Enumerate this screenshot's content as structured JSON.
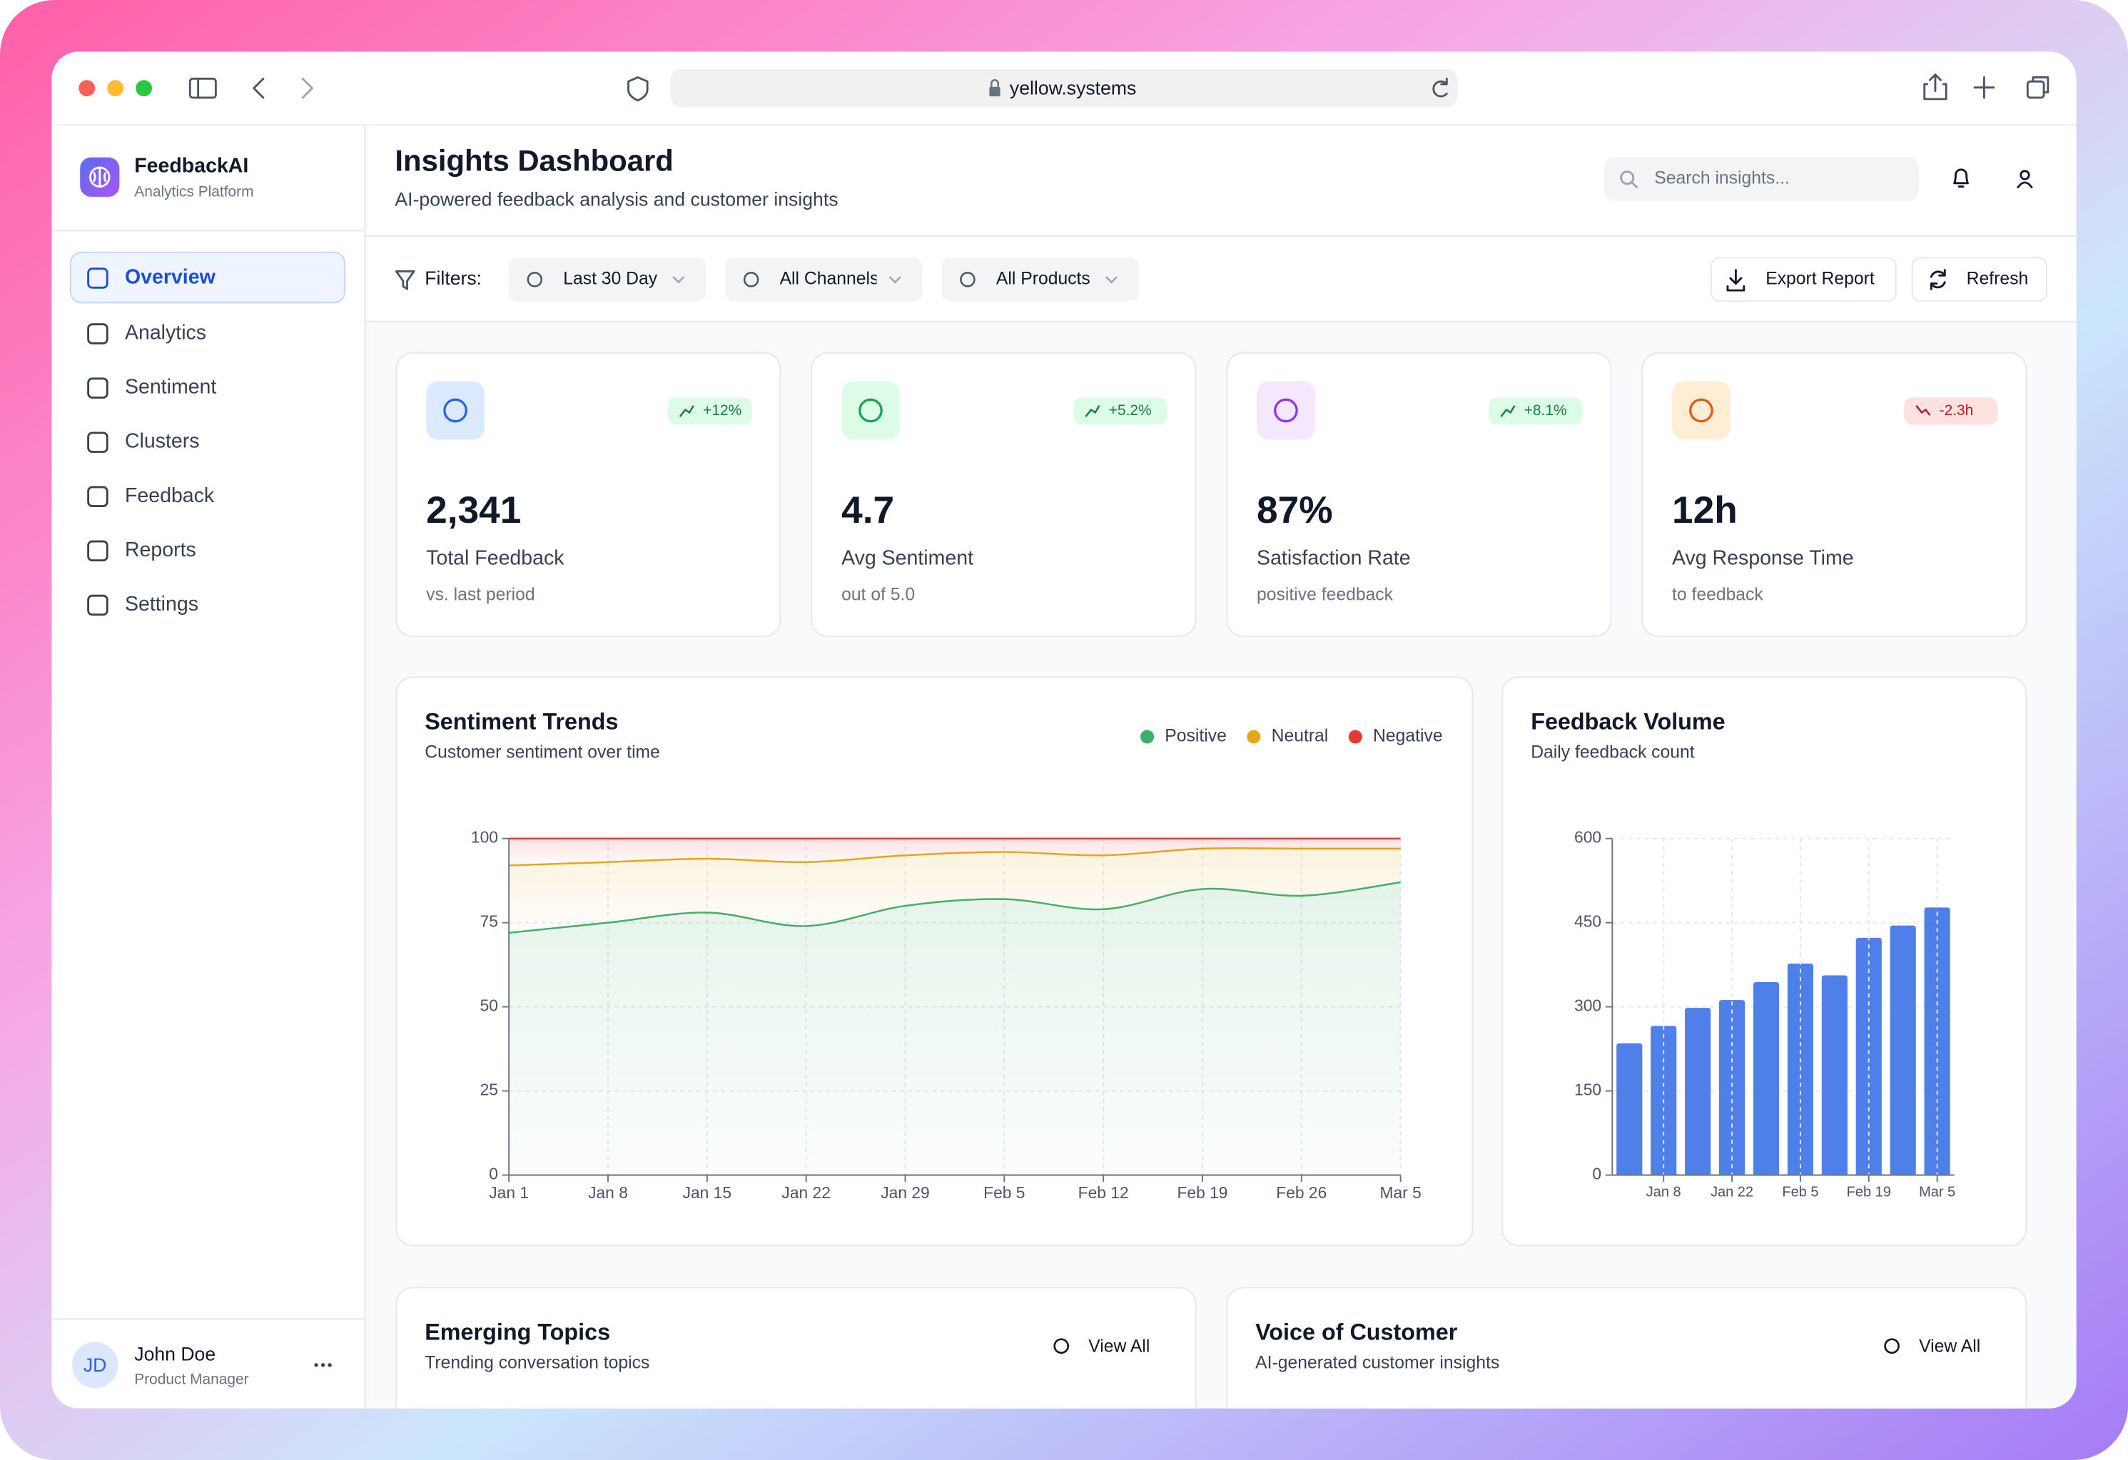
{
  "browser": {
    "url": "yellow.systems"
  },
  "sidebar": {
    "brand": "FeedbackAI",
    "tagline": "Analytics Platform",
    "nav": [
      "Overview",
      "Analytics",
      "Sentiment",
      "Clusters",
      "Feedback",
      "Reports",
      "Settings"
    ],
    "user": {
      "initials": "JD",
      "name": "John Doe",
      "role": "Product Manager"
    }
  },
  "header": {
    "title": "Insights Dashboard",
    "subtitle": "AI-powered feedback analysis and customer insights",
    "search_placeholder": "Search insights..."
  },
  "filters": {
    "label": "Filters:",
    "options": [
      "Last 30 Day",
      "All Channels",
      "All Products"
    ]
  },
  "actions": [
    "Export Report",
    "Refresh"
  ],
  "kpis": [
    {
      "value": "2,341",
      "label": "Total Feedback",
      "note": "vs. last period",
      "change": "+12%",
      "trend": "up"
    },
    {
      "value": "4.7",
      "label": "Avg Sentiment",
      "note": "out of 5.0",
      "change": "+5.2%",
      "trend": "up"
    },
    {
      "value": "87%",
      "label": "Satisfaction Rate",
      "note": "positive feedback",
      "change": "+8.1%",
      "trend": "up"
    },
    {
      "value": "12h",
      "label": "Avg Response Time",
      "note": "to feedback",
      "change": "-2.3h",
      "trend": "down"
    }
  ],
  "chart_data": [
    {
      "type": "area",
      "stacked": true,
      "title": "Sentiment Trends",
      "subtitle": "Customer sentiment over time",
      "categories": [
        "Jan 1",
        "Jan 8",
        "Jan 15",
        "Jan 22",
        "Jan 29",
        "Feb 5",
        "Feb 12",
        "Feb 19",
        "Feb 26",
        "Mar 5"
      ],
      "series": [
        {
          "name": "Positive",
          "color": "#3fae6a",
          "values": [
            72,
            75,
            78,
            74,
            80,
            82,
            79,
            85,
            83,
            87
          ]
        },
        {
          "name": "Neutral",
          "color": "#e6a817",
          "values": [
            20,
            18,
            16,
            19,
            15,
            14,
            16,
            12,
            14,
            10
          ]
        },
        {
          "name": "Negative",
          "color": "#e53935",
          "values": [
            8,
            7,
            6,
            7,
            5,
            4,
            5,
            3,
            3,
            3
          ]
        }
      ],
      "ylim": [
        0,
        100
      ],
      "yticks": [
        0,
        25,
        50,
        75,
        100
      ],
      "grid": true,
      "legend": "top-right"
    },
    {
      "type": "bar",
      "title": "Feedback Volume",
      "subtitle": "Daily feedback count",
      "categories": [
        null,
        "Jan 8",
        null,
        "Jan 22",
        null,
        "Feb 5",
        null,
        "Feb 19",
        null,
        "Mar 5"
      ],
      "values": [
        235,
        266,
        298,
        312,
        344,
        377,
        356,
        423,
        445,
        477
      ],
      "color": "#4f7fe8",
      "ylim": [
        0,
        600
      ],
      "yticks": [
        0,
        150,
        300,
        450,
        600
      ],
      "grid": true
    }
  ],
  "panels": [
    {
      "title": "Emerging Topics",
      "subtitle": "Trending conversation topics",
      "action": "View All"
    },
    {
      "title": "Voice of Customer",
      "subtitle": "AI-generated customer insights",
      "action": "View All"
    }
  ]
}
